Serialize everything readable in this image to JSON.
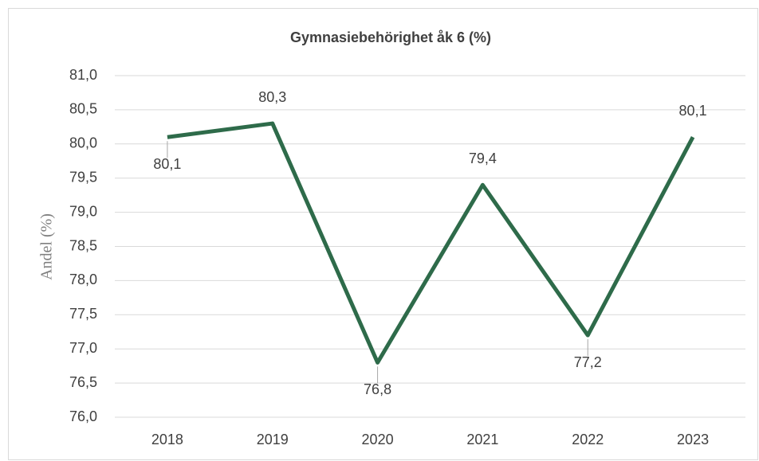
{
  "chart_data": {
    "type": "line",
    "title": "Gymnasiebehörighet åk 6 (%)",
    "y_label": "Andel (%)",
    "categories": [
      "2018",
      "2019",
      "2020",
      "2021",
      "2022",
      "2023"
    ],
    "series": [
      {
        "name": "Andel",
        "color": "#2e6b4a",
        "values": [
          80.1,
          80.3,
          76.8,
          79.4,
          77.2,
          80.1
        ],
        "value_labels": [
          "80,1",
          "80,3",
          "76,8",
          "79,4",
          "77,2",
          "80,1"
        ]
      }
    ],
    "ylim": [
      76,
      81
    ],
    "yticks": [
      {
        "value": 76,
        "label": "76,0"
      },
      {
        "value": 76.5,
        "label": "76,5"
      },
      {
        "value": 77,
        "label": "77,0"
      },
      {
        "value": 77.5,
        "label": "77,5"
      },
      {
        "value": 78,
        "label": "78,0"
      },
      {
        "value": 78.5,
        "label": "78,5"
      },
      {
        "value": 79,
        "label": "79,0"
      },
      {
        "value": 79.5,
        "label": "79,5"
      },
      {
        "value": 80,
        "label": "80,0"
      },
      {
        "value": 80.5,
        "label": "80,5"
      },
      {
        "value": 81,
        "label": "81,0"
      }
    ],
    "grid": true
  }
}
